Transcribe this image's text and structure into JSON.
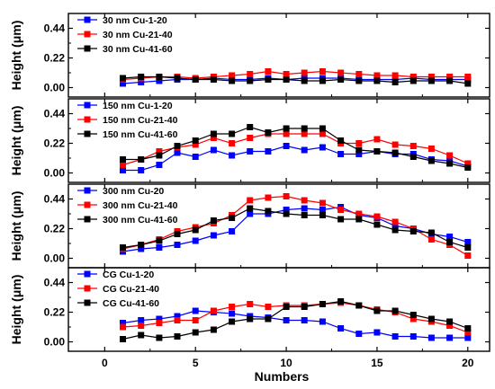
{
  "chart_data": {
    "type": "line",
    "xlabel": "Numbers",
    "xlim": [
      -2,
      21.2
    ],
    "xticks": [
      "0",
      "5",
      "10",
      "15",
      "20"
    ],
    "ylim": [
      -0.07,
      0.55
    ],
    "yticks": [
      "0.00",
      "0.22",
      "0.44"
    ],
    "grid": false,
    "legend_position": "top-left",
    "colors": {
      "blue": "#0000ff",
      "red": "#ff0000",
      "black": "#000000"
    },
    "panels": [
      {
        "ylabel": "Height (μm)",
        "series": [
          {
            "name": "30 nm Cu-1-20",
            "color": "#0000ff",
            "x": [
              1,
              2,
              3,
              4,
              5,
              6,
              7,
              8,
              9,
              10,
              11,
              12,
              13,
              14,
              15,
              16,
              17,
              18,
              19,
              20
            ],
            "y": [
              0.03,
              0.04,
              0.05,
              0.06,
              0.06,
              0.07,
              0.06,
              0.06,
              0.07,
              0.06,
              0.07,
              0.07,
              0.07,
              0.06,
              0.06,
              0.06,
              0.07,
              0.06,
              0.06,
              0.06
            ]
          },
          {
            "name": "30 nm Cu-21-40",
            "color": "#ff0000",
            "x": [
              1,
              2,
              3,
              4,
              5,
              6,
              7,
              8,
              9,
              10,
              11,
              12,
              13,
              14,
              15,
              16,
              17,
              18,
              19,
              20
            ],
            "y": [
              0.06,
              0.07,
              0.08,
              0.08,
              0.07,
              0.08,
              0.09,
              0.1,
              0.12,
              0.1,
              0.11,
              0.12,
              0.11,
              0.1,
              0.09,
              0.09,
              0.08,
              0.08,
              0.08,
              0.08
            ]
          },
          {
            "name": "30 nm Cu-41-60",
            "color": "#000000",
            "x": [
              1,
              2,
              3,
              4,
              5,
              6,
              7,
              8,
              9,
              10,
              11,
              12,
              13,
              14,
              15,
              16,
              17,
              18,
              19,
              20
            ],
            "y": [
              0.07,
              0.08,
              0.08,
              0.07,
              0.06,
              0.06,
              0.05,
              0.05,
              0.06,
              0.06,
              0.05,
              0.05,
              0.06,
              0.05,
              0.05,
              0.04,
              0.05,
              0.05,
              0.05,
              0.03
            ]
          }
        ]
      },
      {
        "ylabel": "Height (μm)",
        "series": [
          {
            "name": "150 nm Cu-1-20",
            "color": "#0000ff",
            "x": [
              1,
              2,
              3,
              4,
              5,
              6,
              7,
              8,
              9,
              10,
              11,
              12,
              13,
              14,
              15,
              16,
              17,
              18,
              19,
              20
            ],
            "y": [
              0.02,
              0.02,
              0.06,
              0.15,
              0.12,
              0.17,
              0.13,
              0.16,
              0.16,
              0.2,
              0.17,
              0.19,
              0.14,
              0.14,
              0.16,
              0.14,
              0.14,
              0.1,
              0.09,
              0.05
            ]
          },
          {
            "name": "150 nm Cu-21-40",
            "color": "#ff0000",
            "x": [
              1,
              2,
              3,
              4,
              5,
              6,
              7,
              8,
              9,
              10,
              11,
              12,
              13,
              14,
              15,
              16,
              17,
              18,
              19,
              20
            ],
            "y": [
              0.06,
              0.1,
              0.16,
              0.19,
              0.21,
              0.26,
              0.22,
              0.26,
              0.29,
              0.29,
              0.29,
              0.29,
              0.22,
              0.22,
              0.25,
              0.21,
              0.2,
              0.18,
              0.13,
              0.07
            ]
          },
          {
            "name": "150 nm Cu-41-60",
            "color": "#000000",
            "x": [
              1,
              2,
              3,
              4,
              5,
              6,
              7,
              8,
              9,
              10,
              11,
              12,
              13,
              14,
              15,
              16,
              17,
              18,
              19,
              20
            ],
            "y": [
              0.1,
              0.1,
              0.13,
              0.2,
              0.24,
              0.29,
              0.29,
              0.34,
              0.3,
              0.33,
              0.33,
              0.33,
              0.24,
              0.17,
              0.16,
              0.15,
              0.12,
              0.09,
              0.07,
              0.04
            ]
          }
        ]
      },
      {
        "ylabel": "Height (μm)",
        "series": [
          {
            "name": "300 nm Cu-20",
            "color": "#0000ff",
            "x": [
              1,
              2,
              3,
              4,
              5,
              6,
              7,
              8,
              9,
              10,
              11,
              12,
              13,
              14,
              15,
              16,
              17,
              18,
              19,
              20
            ],
            "y": [
              0.05,
              0.07,
              0.08,
              0.1,
              0.13,
              0.17,
              0.2,
              0.33,
              0.33,
              0.36,
              0.37,
              0.36,
              0.38,
              0.32,
              0.3,
              0.24,
              0.22,
              0.18,
              0.16,
              0.12
            ]
          },
          {
            "name": "300 nm Cu-21-40",
            "color": "#ff0000",
            "x": [
              1,
              2,
              3,
              4,
              5,
              6,
              7,
              8,
              9,
              10,
              11,
              12,
              13,
              14,
              15,
              16,
              17,
              18,
              19,
              20
            ],
            "y": [
              0.07,
              0.1,
              0.14,
              0.2,
              0.23,
              0.26,
              0.32,
              0.43,
              0.45,
              0.46,
              0.43,
              0.41,
              0.36,
              0.33,
              0.31,
              0.27,
              0.22,
              0.14,
              0.1,
              0.02
            ]
          },
          {
            "name": "300 nm Cu-41-60",
            "color": "#000000",
            "x": [
              1,
              2,
              3,
              4,
              5,
              6,
              7,
              8,
              9,
              10,
              11,
              12,
              13,
              14,
              15,
              16,
              17,
              18,
              19,
              20
            ],
            "y": [
              0.08,
              0.1,
              0.13,
              0.18,
              0.21,
              0.28,
              0.3,
              0.37,
              0.35,
              0.33,
              0.32,
              0.32,
              0.29,
              0.29,
              0.25,
              0.21,
              0.2,
              0.19,
              0.12,
              0.08
            ]
          }
        ]
      },
      {
        "ylabel": "Height (μm)",
        "series": [
          {
            "name": "CG Cu-1-20",
            "color": "#0000ff",
            "x": [
              1,
              2,
              3,
              4,
              5,
              6,
              7,
              8,
              9,
              10,
              11,
              12,
              13,
              14,
              15,
              16,
              17,
              18,
              19,
              20
            ],
            "y": [
              0.14,
              0.16,
              0.17,
              0.19,
              0.23,
              0.22,
              0.21,
              0.19,
              0.18,
              0.16,
              0.16,
              0.15,
              0.1,
              0.06,
              0.07,
              0.04,
              0.04,
              0.03,
              0.03,
              0.03
            ]
          },
          {
            "name": "CG Cu-21-40",
            "color": "#ff0000",
            "x": [
              1,
              2,
              3,
              4,
              5,
              6,
              7,
              8,
              9,
              10,
              11,
              12,
              13,
              14,
              15,
              16,
              17,
              18,
              19,
              20
            ],
            "y": [
              0.11,
              0.12,
              0.14,
              0.16,
              0.16,
              0.23,
              0.26,
              0.28,
              0.26,
              0.27,
              0.27,
              0.28,
              0.29,
              0.27,
              0.24,
              0.22,
              0.17,
              0.15,
              0.12,
              0.07
            ]
          },
          {
            "name": "CG Cu-41-60",
            "color": "#000000",
            "x": [
              1,
              2,
              3,
              4,
              5,
              6,
              7,
              8,
              9,
              10,
              11,
              12,
              13,
              14,
              15,
              16,
              17,
              18,
              19,
              20
            ],
            "y": [
              0.02,
              0.05,
              0.03,
              0.04,
              0.07,
              0.09,
              0.15,
              0.17,
              0.17,
              0.26,
              0.26,
              0.28,
              0.3,
              0.27,
              0.23,
              0.23,
              0.2,
              0.17,
              0.15,
              0.1
            ]
          }
        ]
      }
    ]
  }
}
